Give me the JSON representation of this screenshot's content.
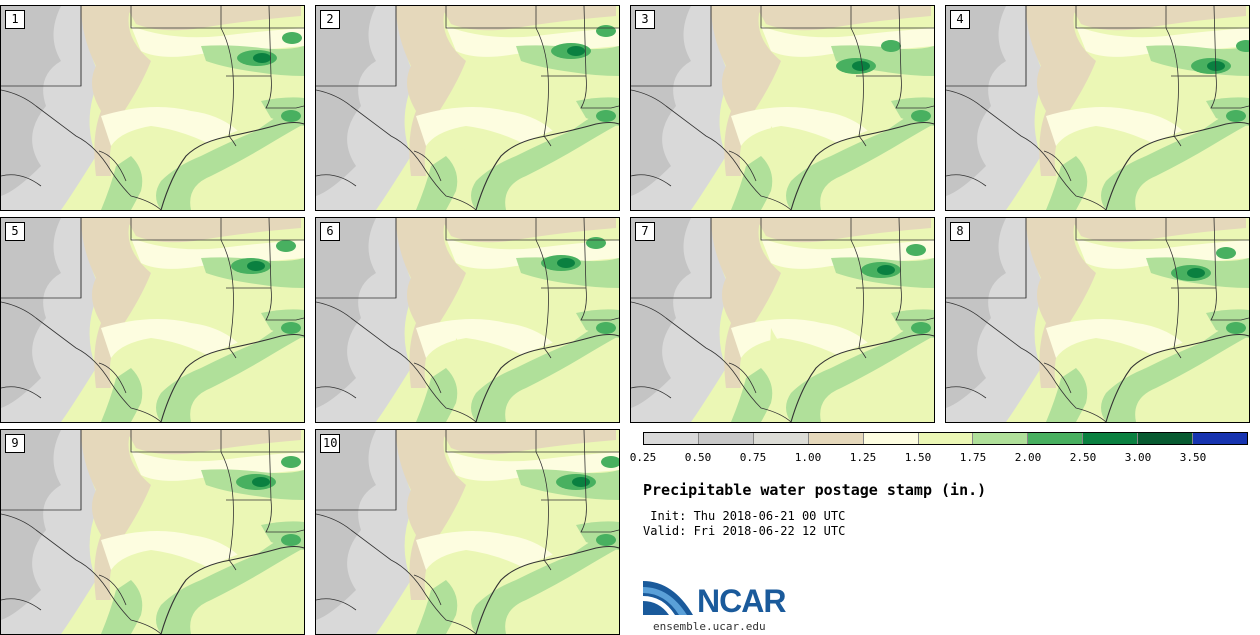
{
  "title": "Precipitable water postage stamp (in.)",
  "init_line": " Init: Thu 2018-06-21 00 UTC",
  "valid_line": "Valid: Fri 2018-06-22 12 UTC",
  "logo_text": "NCAR",
  "logo_url": "ensemble.ucar.edu",
  "colorbar": {
    "colors": [
      "#d9d9d9",
      "#c8c8c8",
      "#dcdcd6",
      "#e5d8bb",
      "#fdfde0",
      "#ebf7b5",
      "#b0e09a",
      "#48b060",
      "#0a8040",
      "#075a30",
      "#1734b0"
    ],
    "tick_labels": [
      "0.25",
      "0.50",
      "0.75",
      "1.00",
      "1.25",
      "1.50",
      "1.75",
      "2.00",
      "2.50",
      "3.00",
      "3.50"
    ]
  },
  "stamps": [
    {
      "label": "1"
    },
    {
      "label": "2"
    },
    {
      "label": "3"
    },
    {
      "label": "4"
    },
    {
      "label": "5"
    },
    {
      "label": "6"
    },
    {
      "label": "7"
    },
    {
      "label": "8"
    },
    {
      "label": "9"
    },
    {
      "label": "10"
    }
  ],
  "map_colors": {
    "gray_light": "#d9d9d9",
    "gray_dark": "#c4c4c4",
    "tan": "#e5d8bb",
    "cream": "#fdfde0",
    "yellow_green": "#ebf7b5",
    "light_green": "#b0e09a",
    "mid_green": "#48b060",
    "dark_green": "#0a8040",
    "border": "#333333"
  }
}
